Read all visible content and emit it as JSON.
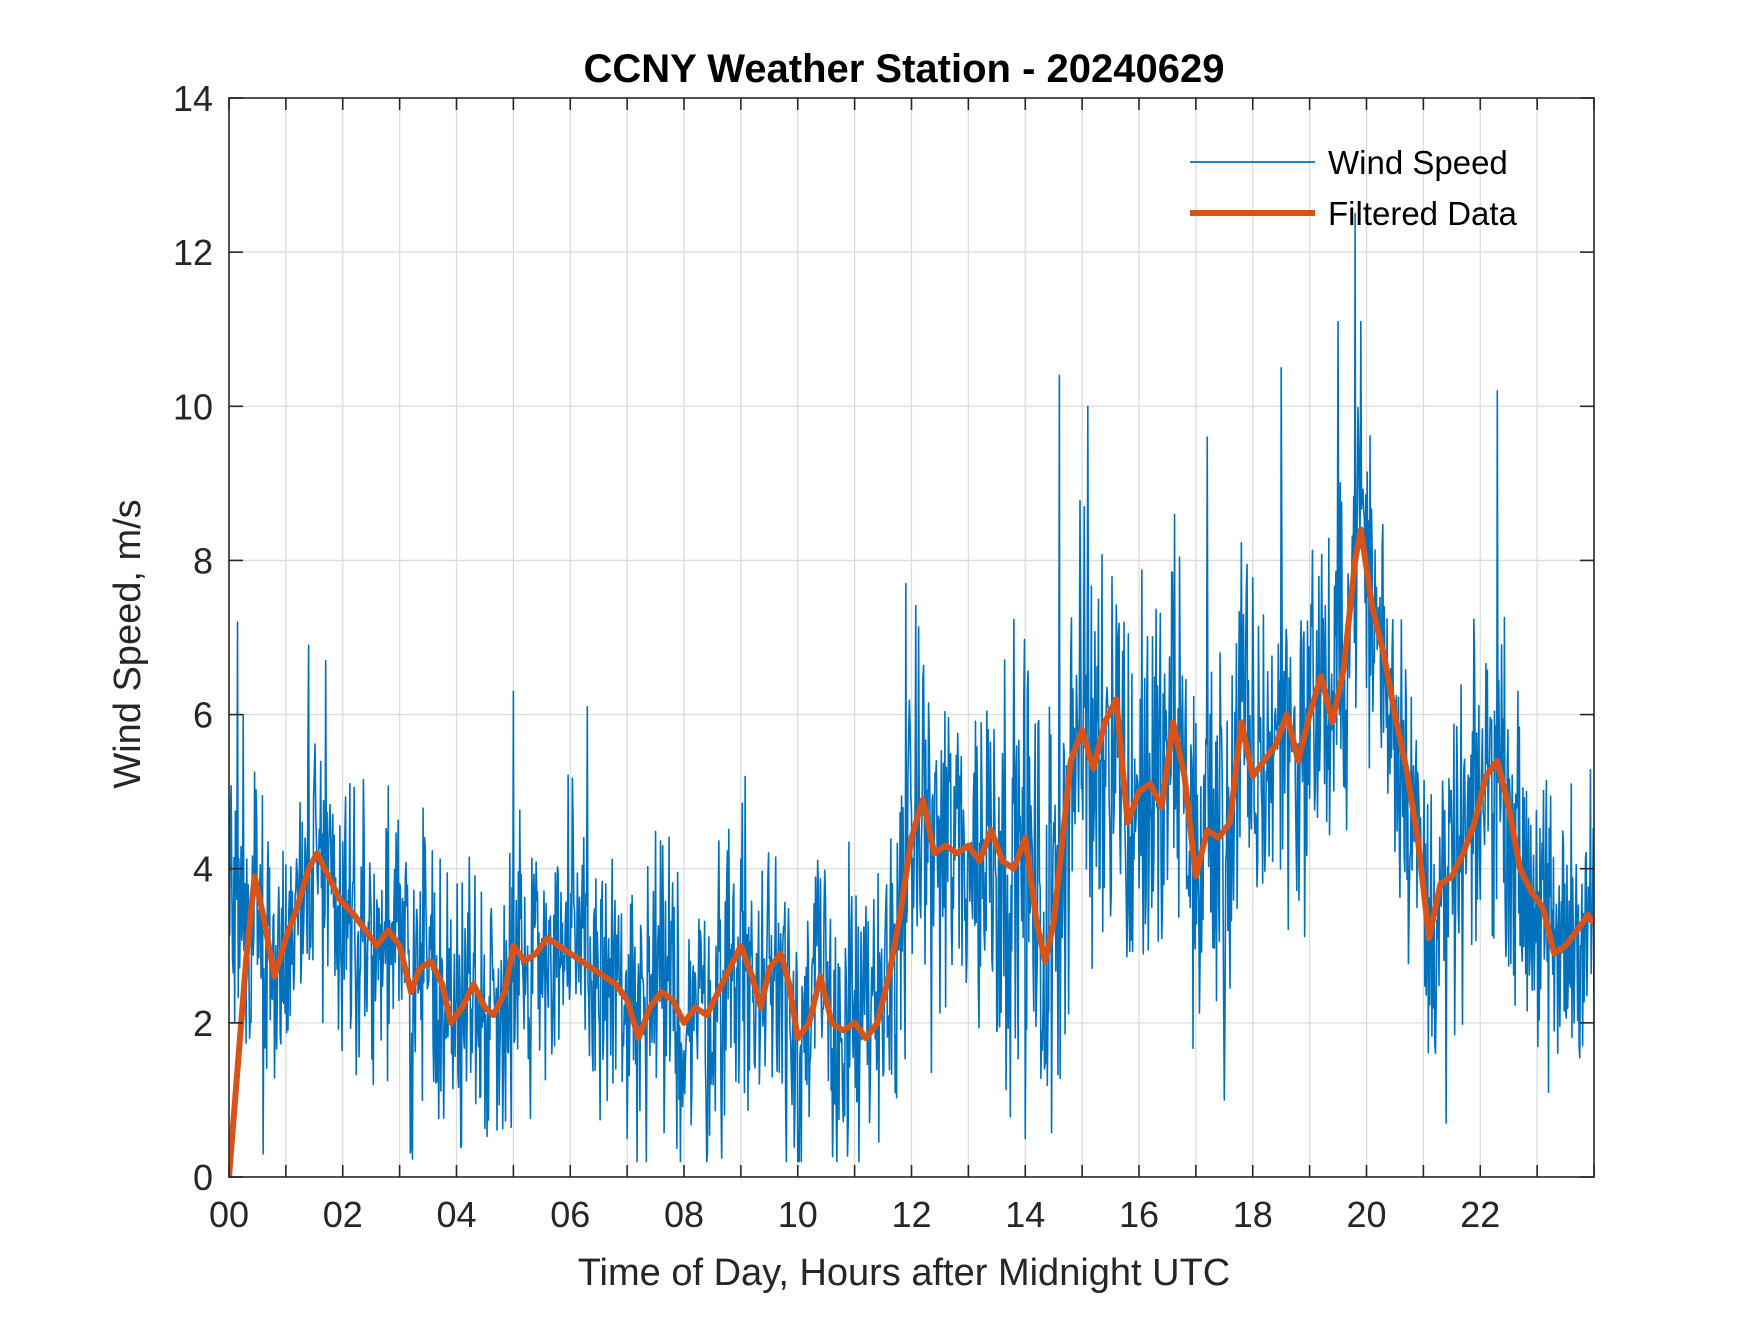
{
  "chart_data": {
    "type": "line",
    "title": "CCNY Weather Station - 20240629",
    "xlabel": "Time of Day, Hours after Midnight UTC",
    "ylabel": "Wind Speed, m/s",
    "xlim": [
      0,
      24
    ],
    "ylim": [
      0,
      14
    ],
    "grid": true,
    "legend_position": "top-right",
    "x_ticks": [
      0,
      2,
      4,
      6,
      8,
      10,
      12,
      14,
      16,
      18,
      20,
      22
    ],
    "x_tick_labels": [
      "00",
      "02",
      "04",
      "06",
      "08",
      "10",
      "12",
      "14",
      "16",
      "18",
      "20",
      "22"
    ],
    "y_ticks": [
      0,
      2,
      4,
      6,
      8,
      10,
      12,
      14
    ],
    "y_tick_labels": [
      "0",
      "2",
      "4",
      "6",
      "8",
      "10",
      "12",
      "14"
    ],
    "series": [
      {
        "name": "Wind Speed",
        "color": "#0072BD",
        "style": "thin-noisy",
        "sample_step_hours": 0.0125,
        "noise_amplitude": [
          [
            0,
            1.3
          ],
          [
            11.5,
            1.6
          ],
          [
            14.5,
            2.3
          ],
          [
            21,
            1.6
          ],
          [
            24,
            1.4
          ]
        ],
        "peaks": [
          [
            0.15,
            7.2
          ],
          [
            0.25,
            6.0
          ],
          [
            1.4,
            6.9
          ],
          [
            1.7,
            6.7
          ],
          [
            5.0,
            6.3
          ],
          [
            6.3,
            6.1
          ],
          [
            11.9,
            7.7
          ],
          [
            14.6,
            10.4
          ],
          [
            15.1,
            10.0
          ],
          [
            17.2,
            9.6
          ],
          [
            18.5,
            10.5
          ],
          [
            19.5,
            11.1
          ],
          [
            19.8,
            12.5
          ],
          [
            19.9,
            11.1
          ],
          [
            22.3,
            10.2
          ],
          [
            23.6,
            5.1
          ]
        ],
        "troughs": [
          [
            0.6,
            0.3
          ],
          [
            3.2,
            0.4
          ],
          [
            7.0,
            0.5
          ],
          [
            9.8,
            0.2
          ],
          [
            14.0,
            0.5
          ],
          [
            17.5,
            1.0
          ],
          [
            21.4,
            0.7
          ],
          [
            23.2,
            1.1
          ],
          [
            24.0,
            1.9
          ]
        ]
      },
      {
        "name": "Filtered Data",
        "color": "#D95319",
        "style": "thick-smoothed",
        "x": [
          0,
          0.3,
          0.45,
          0.6,
          0.8,
          1.0,
          1.2,
          1.4,
          1.55,
          1.75,
          1.95,
          2.2,
          2.4,
          2.6,
          2.8,
          3.0,
          3.2,
          3.35,
          3.55,
          3.75,
          3.9,
          4.1,
          4.3,
          4.5,
          4.65,
          4.85,
          5.0,
          5.2,
          5.4,
          5.6,
          5.8,
          6.0,
          6.2,
          6.4,
          6.6,
          6.8,
          7.0,
          7.2,
          7.4,
          7.6,
          7.8,
          8.0,
          8.2,
          8.4,
          8.6,
          8.8,
          9.0,
          9.2,
          9.35,
          9.5,
          9.7,
          9.85,
          10.0,
          10.2,
          10.4,
          10.6,
          10.8,
          11.0,
          11.2,
          11.4,
          11.6,
          11.8,
          12.0,
          12.2,
          12.4,
          12.6,
          12.8,
          13.0,
          13.2,
          13.4,
          13.6,
          13.8,
          14.0,
          14.2,
          14.35,
          14.5,
          14.6,
          14.8,
          15.0,
          15.2,
          15.4,
          15.6,
          15.8,
          16.0,
          16.2,
          16.4,
          16.6,
          16.8,
          17.0,
          17.2,
          17.4,
          17.6,
          17.8,
          18.0,
          18.2,
          18.4,
          18.6,
          18.8,
          19.0,
          19.2,
          19.4,
          19.6,
          19.8,
          19.9,
          20.1,
          20.3,
          20.5,
          20.7,
          20.9,
          21.1,
          21.3,
          21.5,
          21.7,
          21.9,
          22.1,
          22.3,
          22.5,
          22.7,
          22.9,
          23.1,
          23.3,
          23.5,
          23.7,
          23.9,
          24.0
        ],
        "values": [
          0,
          2.8,
          3.9,
          3.4,
          2.6,
          3.1,
          3.5,
          4.0,
          4.2,
          3.9,
          3.6,
          3.4,
          3.2,
          3.0,
          3.2,
          3.0,
          2.4,
          2.7,
          2.8,
          2.5,
          2.0,
          2.2,
          2.5,
          2.2,
          2.1,
          2.4,
          3.0,
          2.8,
          2.9,
          3.1,
          3.0,
          2.9,
          2.8,
          2.7,
          2.6,
          2.5,
          2.3,
          1.8,
          2.2,
          2.4,
          2.3,
          2.0,
          2.2,
          2.1,
          2.4,
          2.7,
          3.0,
          2.6,
          2.2,
          2.7,
          2.9,
          2.5,
          1.8,
          2.0,
          2.6,
          2.0,
          1.9,
          2.0,
          1.8,
          2.0,
          2.6,
          3.4,
          4.4,
          4.9,
          4.2,
          4.3,
          4.2,
          4.3,
          4.1,
          4.5,
          4.1,
          4.0,
          4.4,
          3.3,
          2.8,
          3.3,
          4.0,
          5.4,
          5.8,
          5.3,
          5.9,
          6.2,
          4.6,
          5.0,
          5.1,
          4.8,
          5.9,
          5.2,
          3.9,
          4.5,
          4.4,
          4.6,
          5.9,
          5.2,
          5.4,
          5.6,
          6.0,
          5.4,
          6.0,
          6.5,
          5.9,
          6.6,
          8.0,
          8.4,
          7.4,
          6.8,
          6.0,
          5.3,
          4.4,
          3.1,
          3.8,
          3.9,
          4.2,
          4.6,
          5.2,
          5.4,
          4.8,
          4.0,
          3.7,
          3.5,
          2.9,
          3.0,
          3.2,
          3.4,
          3.3
        ]
      }
    ]
  }
}
